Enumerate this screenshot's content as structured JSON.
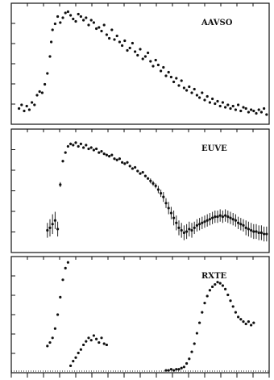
{
  "chart_data": [
    {
      "type": "scatter",
      "title": "AAVSO",
      "xlim": [
        0,
        100
      ],
      "ylim": [
        0,
        10
      ],
      "x": [
        3,
        4,
        5,
        6,
        7,
        8,
        9,
        10,
        11,
        12,
        13,
        14,
        15,
        15.5,
        16,
        17,
        18,
        19,
        20,
        21,
        22,
        23,
        24,
        25,
        26,
        27,
        28,
        29,
        30,
        31,
        32,
        33,
        34,
        35,
        36,
        37,
        38,
        39,
        40,
        41,
        42,
        43,
        44,
        45,
        46,
        47,
        48,
        49,
        50,
        51,
        52,
        53,
        54,
        55,
        56,
        57,
        58,
        59,
        60,
        61,
        62,
        63,
        64,
        65,
        66,
        67,
        68,
        69,
        70,
        71,
        72,
        73,
        74,
        75,
        76,
        77,
        78,
        79,
        80,
        81,
        82,
        83,
        84,
        85,
        86,
        87,
        88,
        89,
        90,
        91,
        92,
        93,
        94,
        95,
        96,
        97,
        98,
        99
      ],
      "y": [
        1.3,
        1.6,
        1.1,
        1.5,
        1.2,
        1.8,
        1.6,
        2.4,
        2.7,
        2.6,
        3.3,
        4.2,
        5.6,
        6.8,
        7.8,
        8.3,
        8.9,
        8.4,
        8.8,
        9.2,
        9.3,
        9.0,
        8.7,
        8.5,
        9.1,
        8.9,
        8.6,
        8.8,
        8.2,
        8.6,
        8.4,
        7.9,
        8.0,
        7.7,
        8.2,
        7.4,
        7.1,
        7.8,
        7.0,
        7.3,
        6.8,
        6.5,
        6.9,
        6.1,
        6.3,
        6.7,
        6.0,
        5.7,
        6.2,
        5.4,
        5.6,
        5.9,
        5.2,
        4.8,
        5.3,
        4.9,
        4.4,
        4.7,
        4.0,
        4.3,
        3.9,
        3.5,
        3.8,
        3.2,
        3.6,
        3.0,
        2.8,
        3.1,
        2.6,
        2.9,
        2.4,
        2.2,
        2.6,
        2.0,
        2.3,
        1.8,
        2.1,
        1.7,
        1.9,
        1.5,
        1.8,
        1.4,
        1.6,
        1.3,
        1.5,
        1.2,
        1.6,
        1.1,
        1.4,
        1.3,
        1.0,
        1.2,
        1.1,
        0.9,
        1.2,
        1.0,
        1.3,
        0.8
      ]
    },
    {
      "type": "scatter",
      "title": "EUVE",
      "xlim": [
        0,
        100
      ],
      "ylim": [
        0,
        10
      ],
      "x": [
        14,
        15,
        16,
        17,
        18,
        19,
        20,
        21,
        22,
        23,
        24,
        25,
        26,
        27,
        28,
        29,
        30,
        31,
        32,
        33,
        34,
        35,
        36,
        37,
        38,
        39,
        40,
        41,
        42,
        43,
        44,
        45,
        46,
        47,
        48,
        49,
        50,
        51,
        52,
        53,
        54,
        55,
        56,
        57,
        58,
        59,
        60,
        61,
        62,
        63,
        64,
        65,
        66,
        67,
        68,
        69,
        70,
        71,
        72,
        73,
        74,
        75,
        76,
        77,
        78,
        79,
        80,
        81,
        82,
        83,
        84,
        85,
        86,
        87,
        88,
        89,
        90,
        91,
        92,
        93,
        94,
        95,
        96,
        97,
        98,
        99
      ],
      "y": [
        1.8,
        2.0,
        2.3,
        2.6,
        1.9,
        5.5,
        7.4,
        8.1,
        8.6,
        8.8,
        8.7,
        8.9,
        8.6,
        8.8,
        8.5,
        8.7,
        8.4,
        8.5,
        8.3,
        8.4,
        8.1,
        8.2,
        8.0,
        7.9,
        7.8,
        7.9,
        7.6,
        7.5,
        7.6,
        7.3,
        7.2,
        7.3,
        7.0,
        6.8,
        6.9,
        6.6,
        6.4,
        6.5,
        6.2,
        6.0,
        5.8,
        5.6,
        5.4,
        5.1,
        4.8,
        4.5,
        4.0,
        3.6,
        3.2,
        2.8,
        2.4,
        2.0,
        1.8,
        1.6,
        1.7,
        1.9,
        1.8,
        2.0,
        2.2,
        2.3,
        2.4,
        2.5,
        2.6,
        2.7,
        2.8,
        2.9,
        2.9,
        3.0,
        2.9,
        3.0,
        2.9,
        2.8,
        2.7,
        2.6,
        2.4,
        2.3,
        2.2,
        2.0,
        1.9,
        1.8,
        1.7,
        1.7,
        1.6,
        1.6,
        1.5,
        1.5
      ],
      "y_error": [
        0.6,
        0.7,
        0.8,
        0.7,
        0.6,
        0.2,
        0.1,
        0.1,
        0.1,
        0.1,
        0.1,
        0.1,
        0.1,
        0.1,
        0.1,
        0.1,
        0.1,
        0.1,
        0.1,
        0.1,
        0.1,
        0.1,
        0.1,
        0.1,
        0.1,
        0.1,
        0.1,
        0.1,
        0.1,
        0.1,
        0.1,
        0.1,
        0.1,
        0.1,
        0.1,
        0.1,
        0.1,
        0.1,
        0.1,
        0.1,
        0.2,
        0.2,
        0.2,
        0.3,
        0.3,
        0.4,
        0.4,
        0.5,
        0.5,
        0.6,
        0.6,
        0.6,
        0.6,
        0.6,
        0.6,
        0.6,
        0.6,
        0.5,
        0.5,
        0.5,
        0.5,
        0.5,
        0.5,
        0.5,
        0.5,
        0.5,
        0.5,
        0.5,
        0.5,
        0.5,
        0.5,
        0.5,
        0.5,
        0.5,
        0.5,
        0.5,
        0.5,
        0.6,
        0.6,
        0.6,
        0.6,
        0.6,
        0.6,
        0.6,
        0.6,
        0.6
      ]
    },
    {
      "type": "scatter",
      "title": "RXTE",
      "xlim": [
        0,
        100
      ],
      "ylim": [
        0,
        10
      ],
      "x": [
        14,
        15,
        16,
        17,
        18,
        19,
        20,
        21,
        22,
        23,
        24,
        25,
        26,
        27,
        28,
        29,
        30,
        31,
        32,
        33,
        34,
        35,
        36,
        37,
        60,
        61,
        62,
        63,
        64,
        65,
        66,
        67,
        68,
        69,
        70,
        71,
        72,
        73,
        74,
        75,
        76,
        77,
        78,
        79,
        80,
        81,
        82,
        83,
        84,
        85,
        86,
        87,
        88,
        89,
        90,
        91,
        92,
        93,
        94
      ],
      "y": [
        2.3,
        2.6,
        3.0,
        3.8,
        5.0,
        6.5,
        8.0,
        9.0,
        9.5,
        0.6,
        1.0,
        1.3,
        1.7,
        2.0,
        2.4,
        2.7,
        3.0,
        2.8,
        3.2,
        2.9,
        2.6,
        3.0,
        2.5,
        2.4,
        0.2,
        0.2,
        0.3,
        0.2,
        0.3,
        0.3,
        0.4,
        0.5,
        0.8,
        1.2,
        1.8,
        2.5,
        3.4,
        4.3,
        5.2,
        6.0,
        6.6,
        7.1,
        7.4,
        7.6,
        7.8,
        7.7,
        7.5,
        7.2,
        6.7,
        6.2,
        5.7,
        5.2,
        4.8,
        4.6,
        4.4,
        4.2,
        4.4,
        4.1,
        4.3
      ]
    }
  ]
}
